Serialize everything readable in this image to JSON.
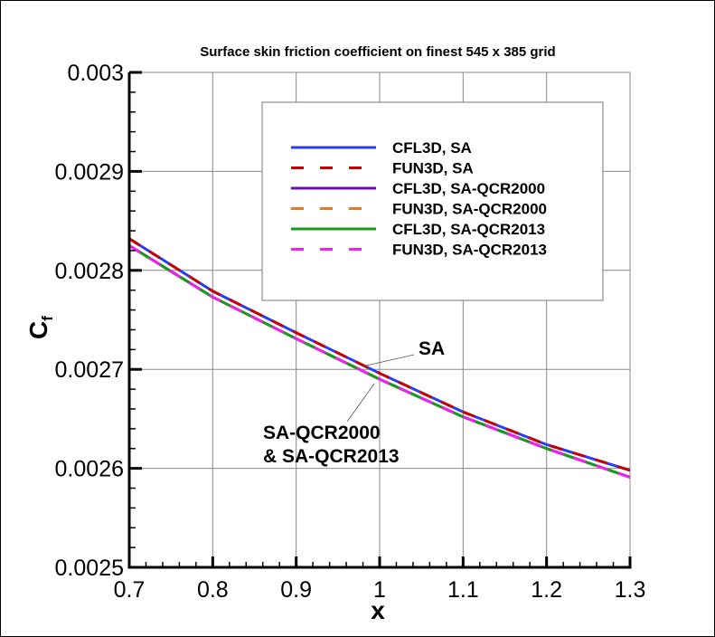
{
  "chart_data": {
    "type": "line",
    "title": "Surface skin friction coefficient on finest 545 x 385 grid",
    "xlabel": "x",
    "ylabel_main": "C",
    "ylabel_sub": "f",
    "xlim": [
      0.7,
      1.3
    ],
    "ylim": [
      0.0025,
      0.003
    ],
    "xticks": [
      "0.7",
      "0.8",
      "0.9",
      "1",
      "1.1",
      "1.2",
      "1.3"
    ],
    "yticks": [
      "0.0025",
      "0.0026",
      "0.0027",
      "0.0028",
      "0.0029",
      "0.003"
    ],
    "grid": true,
    "legend_placement": "top-right",
    "x": [
      0.7,
      0.8,
      0.9,
      1.0,
      1.1,
      1.2,
      1.3
    ],
    "series": [
      {
        "name": "CFL3D, SA",
        "color": "#2b3cf0",
        "dash": false,
        "values": [
          0.002832,
          0.002779,
          0.002737,
          0.002696,
          0.002657,
          0.002624,
          0.002598
        ]
      },
      {
        "name": "FUN3D, SA",
        "color": "#c80000",
        "dash": true,
        "values": [
          0.002832,
          0.002779,
          0.002737,
          0.002696,
          0.002657,
          0.002624,
          0.002598
        ]
      },
      {
        "name": "CFL3D, SA-QCR2000",
        "color": "#6a0fb0",
        "dash": false,
        "values": [
          0.002825,
          0.002773,
          0.002731,
          0.00269,
          0.002652,
          0.00262,
          0.002591
        ]
      },
      {
        "name": "FUN3D, SA-QCR2000",
        "color": "#f07020",
        "dash": true,
        "values": [
          0.002825,
          0.002773,
          0.002731,
          0.00269,
          0.002652,
          0.00262,
          0.002591
        ]
      },
      {
        "name": "CFL3D, SA-QCR2013",
        "color": "#1a9a1a",
        "dash": false,
        "values": [
          0.002825,
          0.002773,
          0.002731,
          0.00269,
          0.002652,
          0.00262,
          0.002591
        ]
      },
      {
        "name": "FUN3D, SA-QCR2013",
        "color": "#f020f0",
        "dash": true,
        "values": [
          0.002825,
          0.002773,
          0.002731,
          0.00269,
          0.002652,
          0.00262,
          0.002591
        ]
      }
    ],
    "annotations": [
      {
        "text": "SA"
      },
      {
        "text": "SA-QCR2000"
      },
      {
        "text": "& SA-QCR2013"
      }
    ]
  }
}
